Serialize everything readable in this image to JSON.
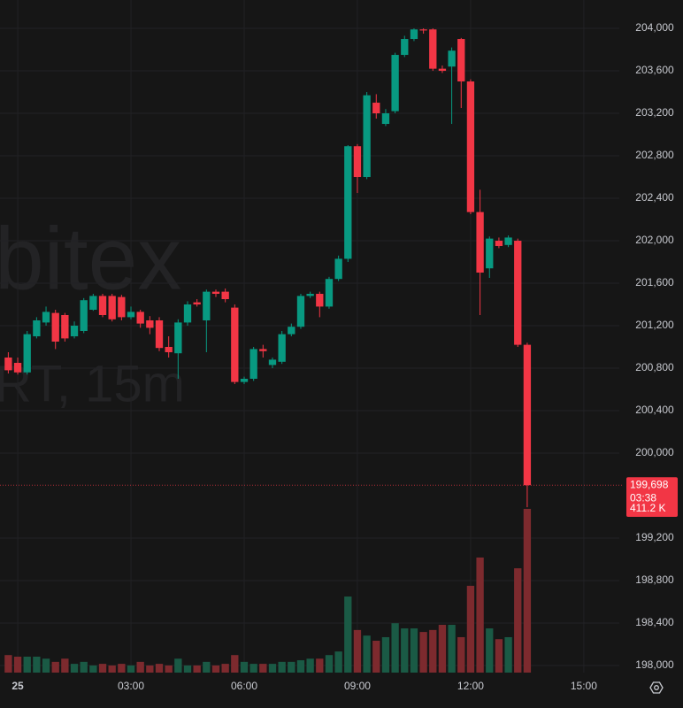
{
  "chart_data": {
    "type": "candlestick",
    "watermark": [
      "bitex",
      "RT, 15m"
    ],
    "x": [
      -0.25,
      0,
      0.25,
      0.5,
      0.75,
      1,
      1.25,
      1.5,
      1.75,
      2,
      2.25,
      2.5,
      2.75,
      3,
      3.25,
      3.5,
      3.75,
      4,
      4.25,
      4.5,
      4.75,
      5,
      5.25,
      5.5,
      5.75,
      6,
      6.25,
      6.5,
      6.75,
      7,
      7.25,
      7.5,
      7.75,
      8,
      8.25,
      8.5,
      8.75,
      9,
      9.25,
      9.5,
      9.75,
      10,
      10.25,
      10.5,
      10.75,
      11,
      11.25,
      11.5,
      11.75,
      12,
      12.25,
      12.5,
      12.75,
      13,
      13.25,
      13.5
    ],
    "open": [
      200900,
      200850,
      200760,
      201100,
      201230,
      201320,
      201300,
      201100,
      201150,
      201350,
      201480,
      201480,
      201470,
      201280,
      201330,
      201250,
      201250,
      201000,
      200940,
      201230,
      201420,
      201250,
      201520,
      201520,
      201370,
      200670,
      200700,
      200980,
      200830,
      200860,
      201120,
      201190,
      201480,
      201500,
      201380,
      201640,
      201830,
      202890,
      202600,
      203300,
      203100,
      203220,
      203750,
      203900,
      203990,
      203990,
      203620,
      203640,
      203900,
      203500,
      202270,
      201740,
      202000,
      201960,
      202000,
      201020
    ],
    "high": [
      200950,
      200900,
      201150,
      201280,
      201380,
      201350,
      201320,
      201240,
      201460,
      201500,
      201500,
      201500,
      201490,
      201380,
      201350,
      201290,
      201280,
      201100,
      201260,
      201430,
      201450,
      201540,
      201540,
      201550,
      201400,
      200720,
      201000,
      201020,
      200900,
      201150,
      201220,
      201500,
      201520,
      201520,
      201660,
      201860,
      202900,
      202910,
      203400,
      203380,
      203240,
      203770,
      203930,
      204000,
      204000,
      204000,
      203650,
      203820,
      203910,
      203520,
      202480,
      202040,
      202030,
      202050,
      202020,
      201040
    ],
    "low": [
      200750,
      200740,
      200740,
      201080,
      201200,
      200980,
      201050,
      201080,
      201130,
      201340,
      201280,
      201240,
      201250,
      201260,
      201180,
      201120,
      200960,
      200900,
      200700,
      201200,
      201380,
      200950,
      201470,
      201420,
      200650,
      200650,
      200680,
      200900,
      200800,
      200840,
      201100,
      201170,
      201460,
      201280,
      201360,
      201620,
      201800,
      202450,
      202580,
      203150,
      203080,
      203200,
      203730,
      203880,
      203950,
      203600,
      203580,
      203100,
      203250,
      202250,
      201300,
      201650,
      201930,
      201940,
      201000,
      199490
    ],
    "close": [
      200780,
      200760,
      201120,
      201250,
      201330,
      201050,
      201080,
      201200,
      201440,
      201480,
      201300,
      201260,
      201280,
      201330,
      201220,
      201180,
      200990,
      200950,
      201230,
      201400,
      201400,
      201520,
      201500,
      201450,
      200670,
      200700,
      200980,
      200960,
      200880,
      201120,
      201190,
      201480,
      201500,
      201380,
      201640,
      201830,
      202890,
      202600,
      203370,
      203200,
      203200,
      203750,
      203900,
      203990,
      203980,
      203620,
      203600,
      203790,
      203500,
      202270,
      201700,
      202020,
      201950,
      202030,
      201020,
      199698
    ],
    "volume": [
      44,
      40,
      40,
      40,
      35,
      27,
      35,
      22,
      27,
      18,
      22,
      18,
      22,
      18,
      27,
      18,
      22,
      18,
      35,
      18,
      18,
      27,
      18,
      22,
      44,
      27,
      22,
      22,
      22,
      27,
      27,
      31,
      35,
      35,
      44,
      53,
      191,
      107,
      93,
      80,
      89,
      124,
      111,
      111,
      102,
      107,
      120,
      120,
      89,
      218,
      289,
      111,
      84,
      89,
      262,
      411.2
    ],
    "up_color": "#089981",
    "down_color": "#f23645",
    "volume_up_color": "#1a5a45",
    "volume_down_color": "#7d2a2e",
    "xlim": [
      -0.47,
      15.94
    ],
    "xticks": [
      {
        "value": 0,
        "label": "25"
      },
      {
        "value": 3,
        "label": "03:00"
      },
      {
        "value": 6,
        "label": "06:00"
      },
      {
        "value": 9,
        "label": "09:00"
      },
      {
        "value": 12,
        "label": "12:00"
      },
      {
        "value": 15,
        "label": "15:00"
      }
    ],
    "ylim": [
      197933,
      204267
    ],
    "yticks": [
      {
        "value": 198000,
        "label": "198,000"
      },
      {
        "value": 198400,
        "label": "198,400"
      },
      {
        "value": 198800,
        "label": "198,800"
      },
      {
        "value": 199200,
        "label": "199,200"
      },
      {
        "value": 200000,
        "label": "200,000"
      },
      {
        "value": 200400,
        "label": "200,400"
      },
      {
        "value": 200800,
        "label": "200,800"
      },
      {
        "value": 201200,
        "label": "201,200"
      },
      {
        "value": 201600,
        "label": "201,600"
      },
      {
        "value": 202000,
        "label": "202,000"
      },
      {
        "value": 202400,
        "label": "202,400"
      },
      {
        "value": 202800,
        "label": "202,800"
      },
      {
        "value": 203200,
        "label": "203,200"
      },
      {
        "value": 203600,
        "label": "203,600"
      },
      {
        "value": 204000,
        "label": "204,000"
      }
    ],
    "grid": true,
    "price_label": "199,698",
    "countdown": "03:38",
    "volume_label": "411.2 K"
  }
}
